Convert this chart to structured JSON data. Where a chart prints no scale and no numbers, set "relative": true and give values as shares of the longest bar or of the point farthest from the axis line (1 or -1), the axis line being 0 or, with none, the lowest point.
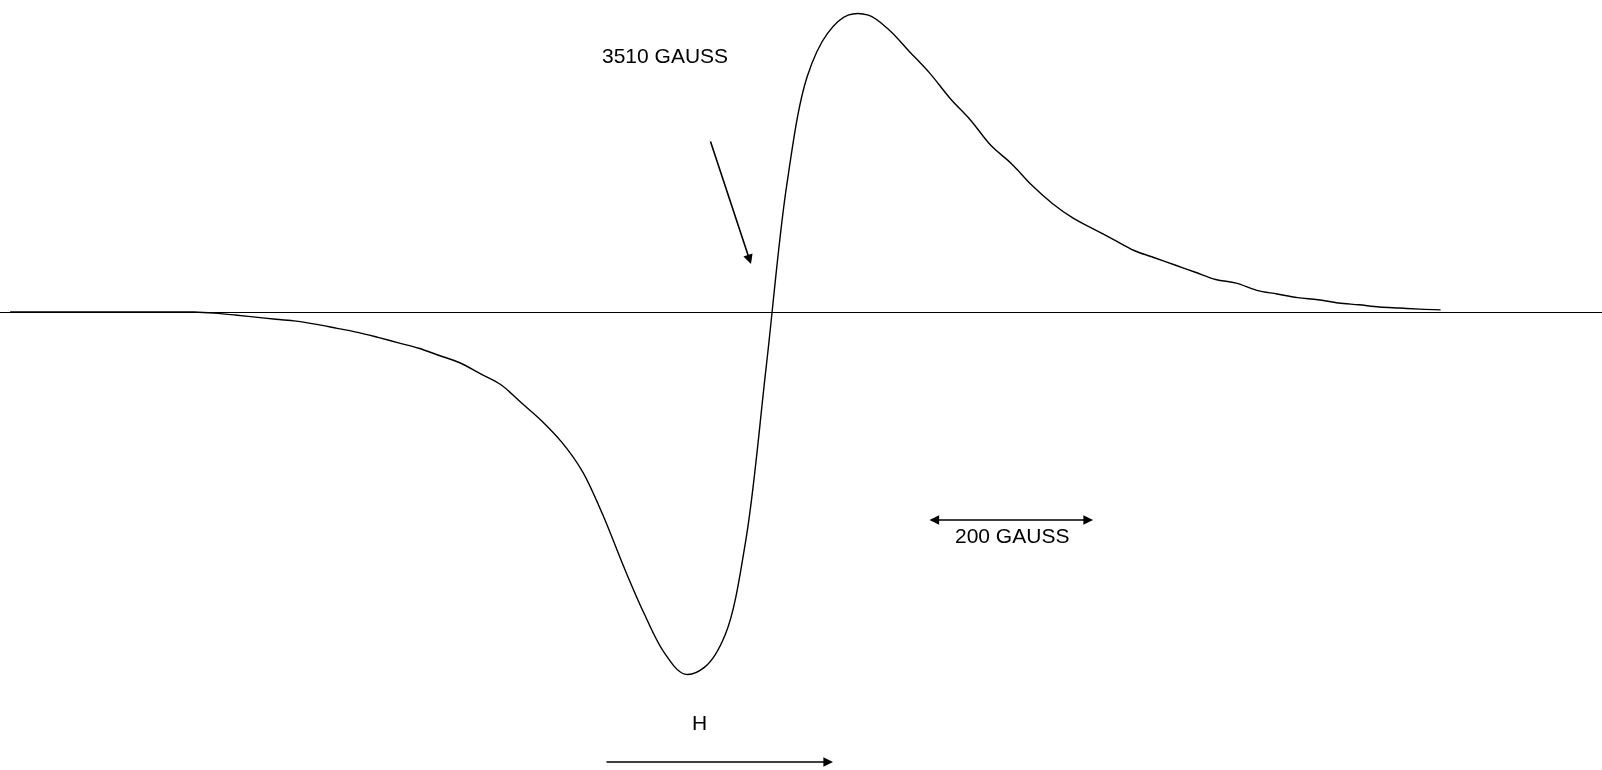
{
  "chart_data": {
    "type": "line",
    "relative": true,
    "color": "#000000",
    "line_style": "solid",
    "marker": "none",
    "categories": [
      null,
      null,
      null,
      null,
      null,
      null,
      null,
      null,
      null,
      null,
      null,
      null,
      null,
      null,
      null,
      null,
      null,
      null,
      null,
      null,
      null,
      null,
      null,
      null,
      null,
      null,
      null,
      null,
      null,
      null,
      null,
      null,
      null,
      null,
      null,
      null,
      null,
      null,
      null,
      null,
      null,
      null,
      null,
      null,
      null,
      null,
      null,
      null,
      null,
      null,
      null,
      null,
      null,
      null,
      null,
      null,
      null,
      null,
      null,
      null,
      null,
      null,
      null,
      null,
      null,
      null,
      null,
      null,
      null,
      null,
      null,
      null,
      null,
      null,
      null,
      null,
      null,
      null,
      null
    ],
    "values": [
      0,
      0,
      0,
      0,
      0,
      0,
      0,
      0,
      0,
      0,
      -0.003,
      -0.008,
      -0.014,
      -0.02,
      -0.025,
      -0.034,
      -0.045,
      -0.056,
      -0.07,
      -0.085,
      -0.1,
      -0.12,
      -0.14,
      -0.17,
      -0.2,
      -0.25,
      -0.3,
      -0.36,
      -0.44,
      -0.56,
      -0.7,
      -0.83,
      -0.94,
      -1,
      -0.98,
      -0.89,
      -0.63,
      -0.15,
      0.35,
      0.65,
      0.77,
      0.82,
      0.82,
      0.78,
      0.72,
      0.66,
      0.59,
      0.53,
      0.46,
      0.41,
      0.35,
      0.3,
      0.26,
      0.23,
      0.2,
      0.17,
      0.15,
      0.13,
      0.11,
      0.09,
      0.08,
      0.06,
      0.05,
      0.04,
      0.034,
      0.025,
      0.02,
      0.014,
      0.011,
      0.008,
      0.006,
      null,
      null,
      null,
      null,
      null,
      null,
      null,
      null
    ],
    "annotations": [
      "3510 GAUSS",
      "200 GAUSS",
      "H"
    ]
  }
}
